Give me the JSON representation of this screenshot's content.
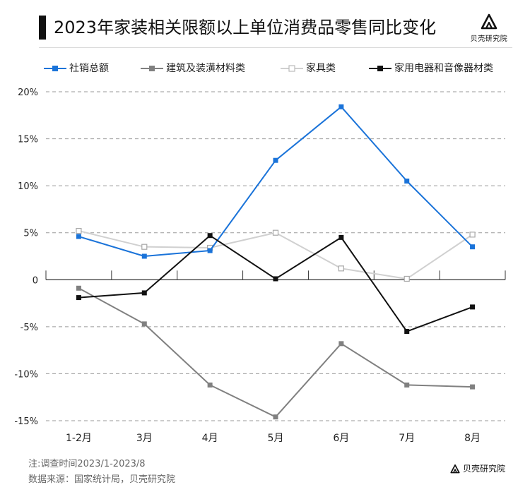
{
  "header": {
    "title": "2023年家装相关限额以上单位消费品零售同比变化",
    "logo_text": "贝壳研究院"
  },
  "chart_data": {
    "type": "line",
    "title": "2023年家装相关限额以上单位消费品零售同比变化",
    "categories": [
      "1-2月",
      "3月",
      "4月",
      "5月",
      "6月",
      "7月",
      "8月"
    ],
    "ylim": [
      -15,
      20
    ],
    "yticks": [
      20,
      15,
      10,
      5,
      0,
      -5,
      -10,
      -15
    ],
    "ytick_labels": [
      "20%",
      "15%",
      "10%",
      "5%",
      "0",
      "-5%",
      "-10%",
      "-15%"
    ],
    "grid": "horizontal-dashed",
    "legend_position": "top",
    "series": [
      {
        "name": "社销总额",
        "color": "#1a73d9",
        "marker": "square-filled",
        "values": [
          4.6,
          2.5,
          3.1,
          12.7,
          18.4,
          10.5,
          3.5
        ]
      },
      {
        "name": "建筑及装潢材料类",
        "color": "#808080",
        "marker": "square-filled",
        "values": [
          -0.9,
          -4.7,
          -11.2,
          -14.6,
          -6.8,
          -11.2,
          -11.4
        ]
      },
      {
        "name": "家具类",
        "color": "#d0d0d0",
        "marker": "square-hollow",
        "values": [
          5.2,
          3.5,
          3.4,
          5.0,
          1.2,
          0.1,
          4.8
        ]
      },
      {
        "name": "家用电器和音像器材类",
        "color": "#111111",
        "marker": "square-filled",
        "values": [
          -1.9,
          -1.4,
          4.7,
          0.1,
          4.5,
          -5.5,
          -2.9
        ]
      }
    ]
  },
  "footer": {
    "note": "注:调查时间2023/1-2023/8",
    "source": "数据来源：国家统计局，贝壳研究院",
    "brand": "贝壳研究院"
  }
}
